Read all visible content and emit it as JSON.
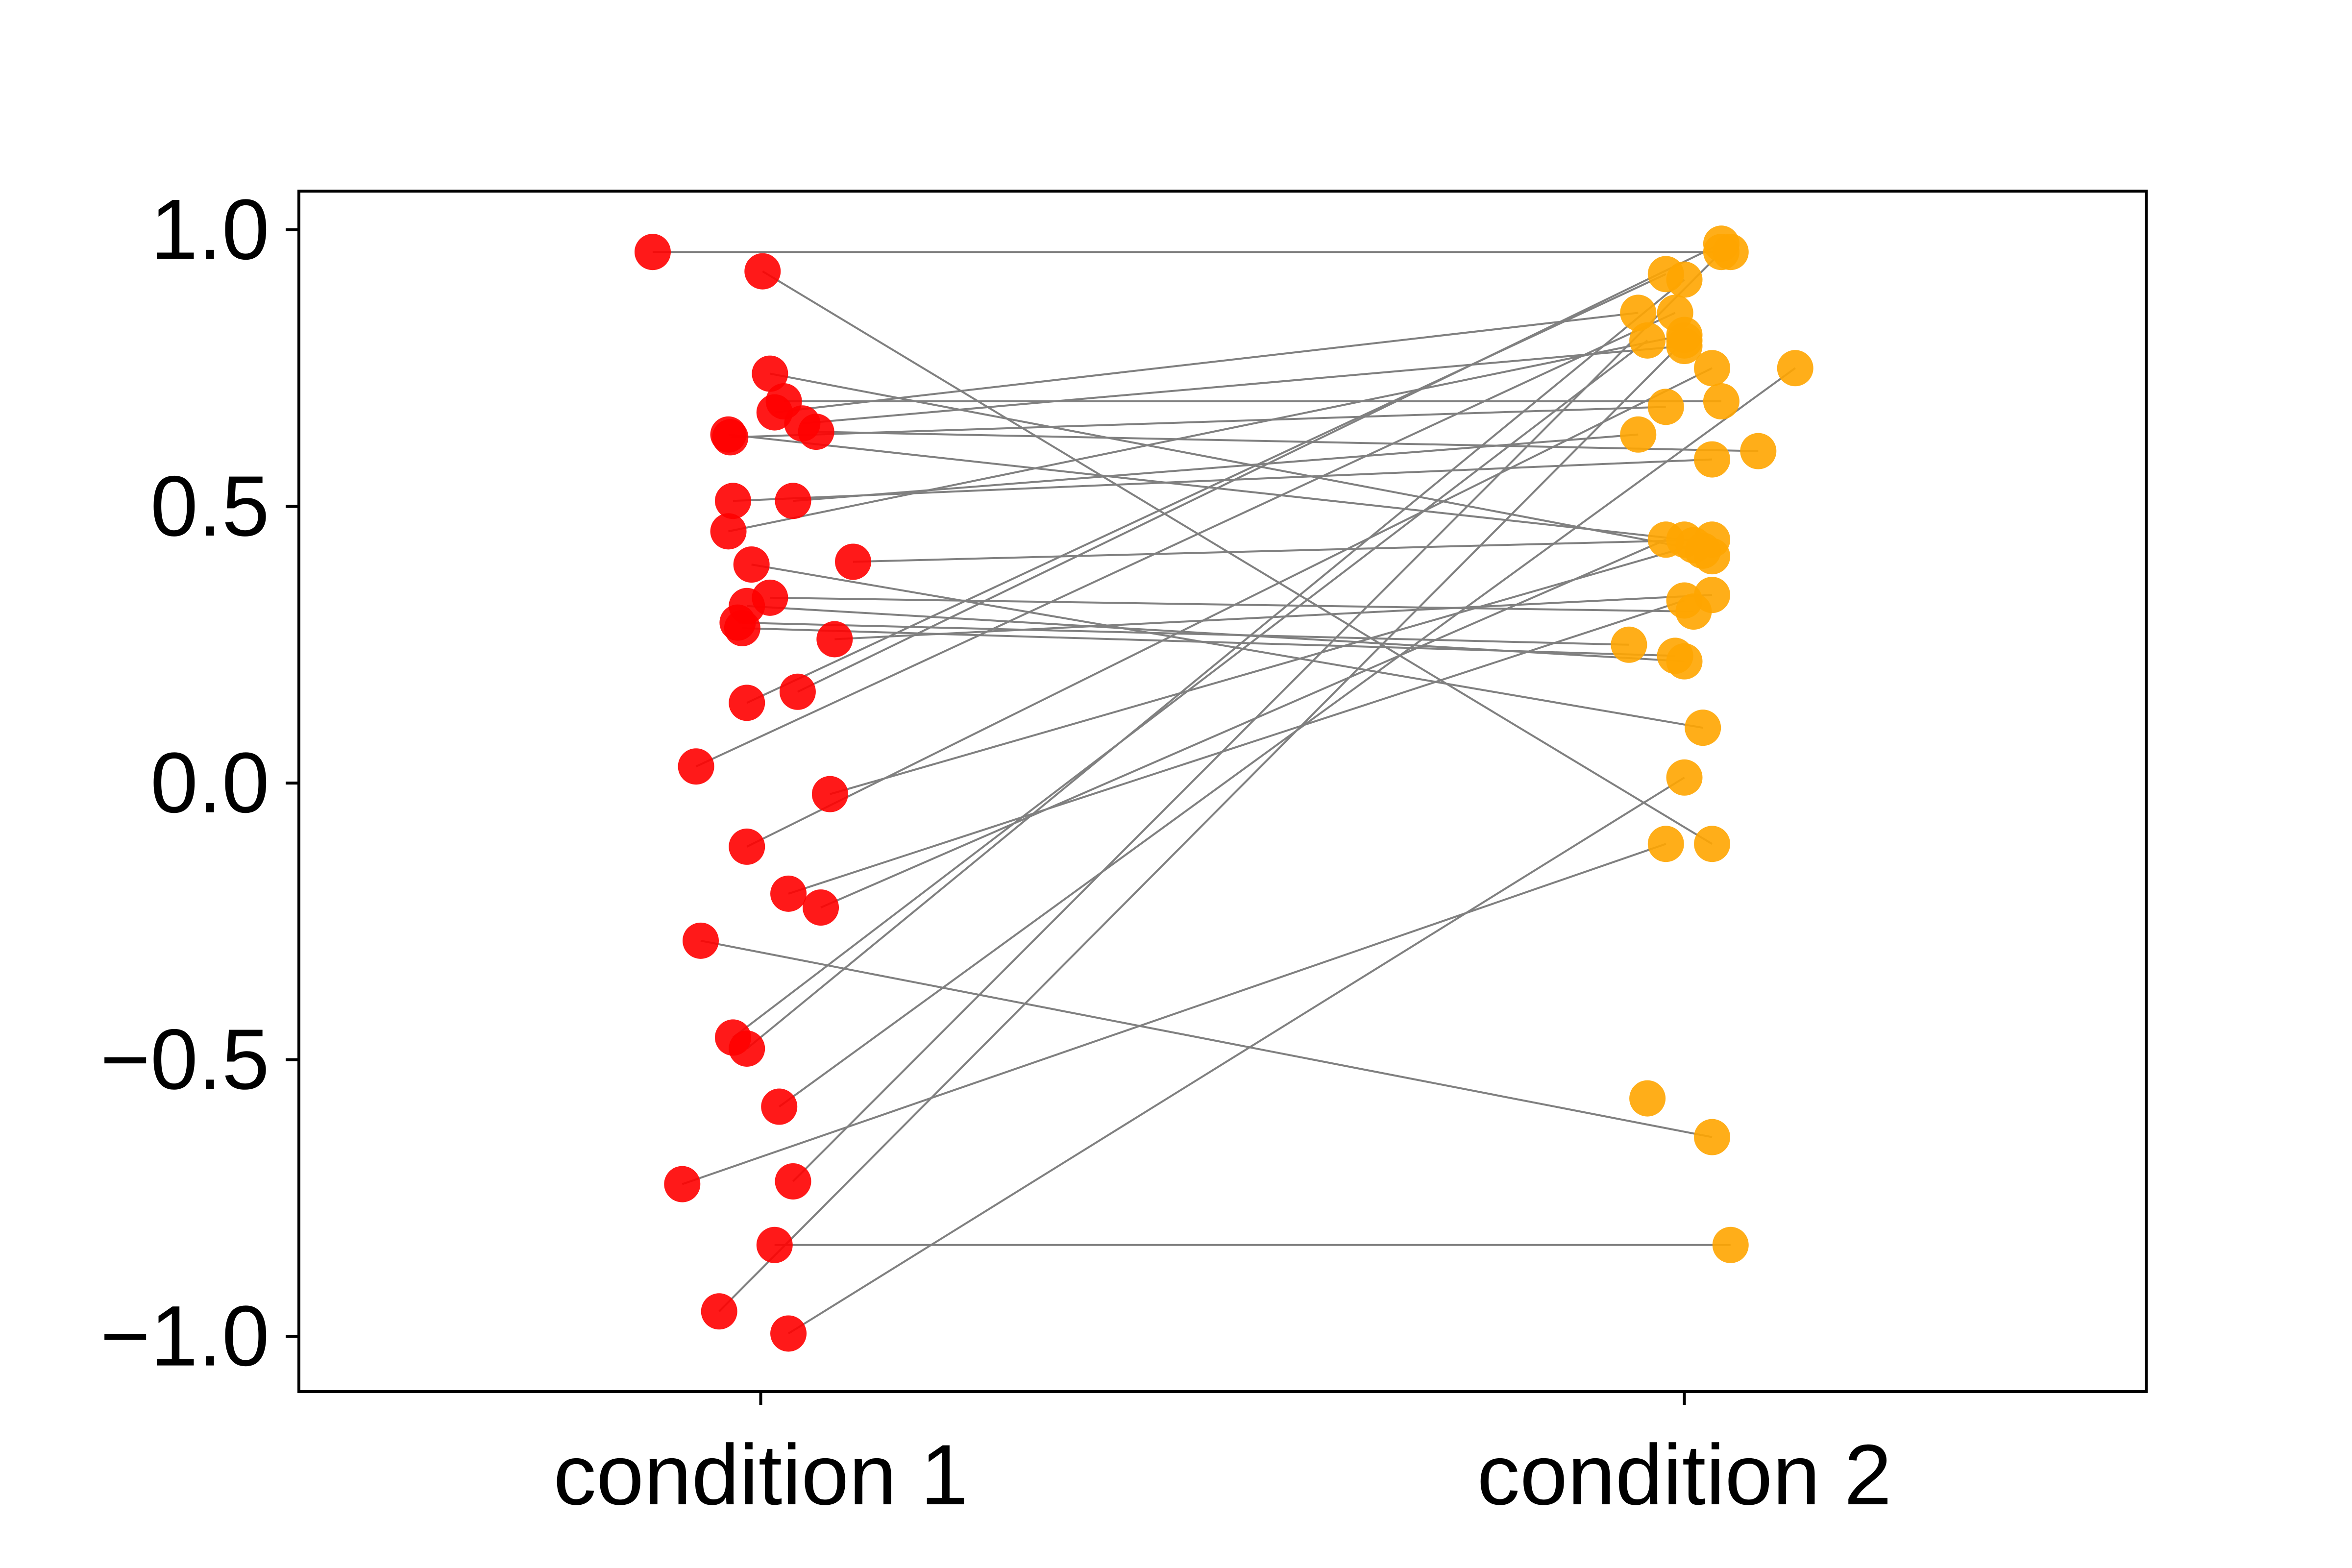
{
  "chart_data": {
    "type": "scatter",
    "title": "",
    "xlabel": "",
    "ylabel": "",
    "categories": [
      "condition 1",
      "condition 2"
    ],
    "xlim": [
      -0.5,
      1.5
    ],
    "ylim": [
      -1.1,
      1.07
    ],
    "yticks": [
      -1.0,
      -0.5,
      0.0,
      0.5,
      1.0
    ],
    "ytick_labels": [
      "−1.0",
      "−0.5",
      "0.0",
      "0.5",
      "1.0"
    ],
    "grid": false,
    "legend": "none",
    "colors": {
      "condition_1": "#ff0000",
      "condition_2": "#ffa500",
      "connector": "#808080"
    },
    "pairs": [
      {
        "x1": -0.117,
        "y1": 0.96,
        "x2": 1.05,
        "y2": 0.96
      },
      {
        "x1": 0.002,
        "y1": 0.925,
        "x2": 1.03,
        "y2": -0.11
      },
      {
        "x1": 0.01,
        "y1": 0.74,
        "x2": 1.02,
        "y2": 0.42
      },
      {
        "x1": 0.025,
        "y1": 0.69,
        "x2": 1.04,
        "y2": 0.69
      },
      {
        "x1": 0.015,
        "y1": 0.67,
        "x2": 0.95,
        "y2": 0.85
      },
      {
        "x1": 0.045,
        "y1": 0.65,
        "x2": 1.0,
        "y2": 0.79
      },
      {
        "x1": 0.06,
        "y1": 0.635,
        "x2": 1.08,
        "y2": 0.6
      },
      {
        "x1": -0.035,
        "y1": 0.63,
        "x2": 1.0,
        "y2": 0.44
      },
      {
        "x1": -0.033,
        "y1": 0.625,
        "x2": 0.98,
        "y2": 0.68
      },
      {
        "x1": -0.03,
        "y1": 0.51,
        "x2": 1.03,
        "y2": 0.585
      },
      {
        "x1": 0.035,
        "y1": 0.51,
        "x2": 0.95,
        "y2": 0.63
      },
      {
        "x1": -0.035,
        "y1": 0.455,
        "x2": 1.0,
        "y2": 0.81
      },
      {
        "x1": 0.1,
        "y1": 0.4,
        "x2": 1.03,
        "y2": 0.44
      },
      {
        "x1": -0.01,
        "y1": 0.395,
        "x2": 1.02,
        "y2": 0.1
      },
      {
        "x1": 0.01,
        "y1": 0.335,
        "x2": 1.01,
        "y2": 0.31
      },
      {
        "x1": -0.015,
        "y1": 0.32,
        "x2": 1.0,
        "y2": 0.22
      },
      {
        "x1": -0.025,
        "y1": 0.29,
        "x2": 0.94,
        "y2": 0.25
      },
      {
        "x1": -0.02,
        "y1": 0.28,
        "x2": 0.99,
        "y2": 0.23
      },
      {
        "x1": 0.08,
        "y1": 0.26,
        "x2": 1.03,
        "y2": 0.34
      },
      {
        "x1": 0.04,
        "y1": 0.165,
        "x2": 1.04,
        "y2": 0.975
      },
      {
        "x1": -0.015,
        "y1": 0.145,
        "x2": 0.98,
        "y2": 0.92
      },
      {
        "x1": -0.07,
        "y1": 0.03,
        "x2": 0.99,
        "y2": 0.85
      },
      {
        "x1": 0.075,
        "y1": -0.02,
        "x2": 1.01,
        "y2": 0.43
      },
      {
        "x1": -0.015,
        "y1": -0.115,
        "x2": 1.03,
        "y2": 0.75
      },
      {
        "x1": 0.03,
        "y1": -0.2,
        "x2": 1.0,
        "y2": 0.33
      },
      {
        "x1": 0.065,
        "y1": -0.225,
        "x2": 0.98,
        "y2": 0.44
      },
      {
        "x1": -0.065,
        "y1": -0.285,
        "x2": 1.03,
        "y2": -0.64
      },
      {
        "x1": -0.03,
        "y1": -0.46,
        "x2": 0.96,
        "y2": 0.8
      },
      {
        "x1": -0.015,
        "y1": -0.48,
        "x2": 1.0,
        "y2": 0.91
      },
      {
        "x1": 0.02,
        "y1": -0.585,
        "x2": 1.12,
        "y2": 0.75
      },
      {
        "x1": -0.085,
        "y1": -0.725,
        "x2": 0.98,
        "y2": -0.11
      },
      {
        "x1": 0.035,
        "y1": -0.72,
        "x2": 1.04,
        "y2": 0.96
      },
      {
        "x1": 0.015,
        "y1": -0.835,
        "x2": 1.05,
        "y2": -0.835
      },
      {
        "x1": -0.045,
        "y1": -0.955,
        "x2": 1.0,
        "y2": 0.8
      },
      {
        "x1": 0.03,
        "y1": -0.995,
        "x2": 1.0,
        "y2": 0.01
      }
    ],
    "extra_points_condition_2": [
      {
        "x": 0.96,
        "y": -0.57
      },
      {
        "x": 1.03,
        "y": 0.41
      }
    ]
  }
}
